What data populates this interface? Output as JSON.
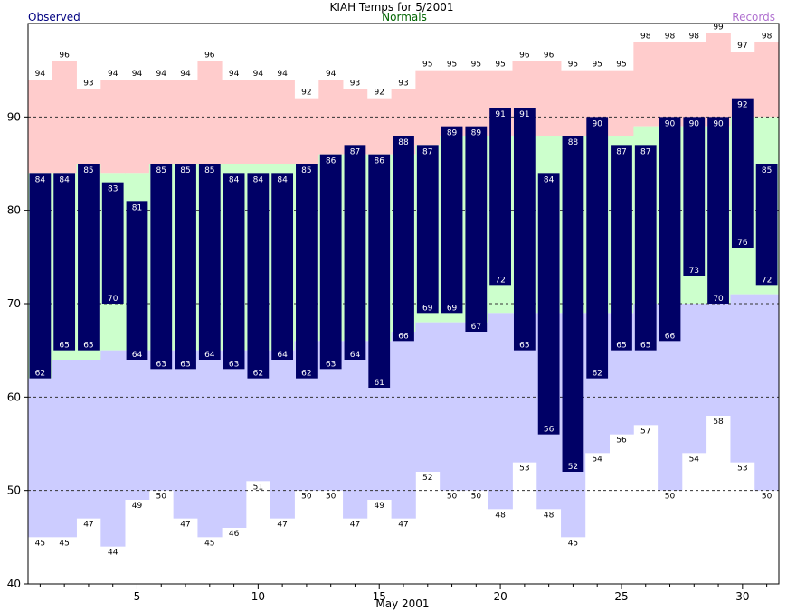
{
  "chart_data": {
    "type": "bar",
    "title": "KIAH Temps for 5/2001",
    "xlabel": "May 2001",
    "ylabel": "",
    "legend": {
      "placement": "top",
      "entries": [
        {
          "label": "Observed",
          "color": "#000080"
        },
        {
          "label": "Normals",
          "color": "#006400"
        },
        {
          "label": "Records",
          "color": "#b070d0"
        }
      ]
    },
    "ylim": [
      40,
      100
    ],
    "yticks": [
      40,
      50,
      60,
      70,
      80,
      90
    ],
    "xticks": [
      5,
      10,
      15,
      20,
      25,
      30
    ],
    "grid": "dashed horizontal at 50, 60, 70, 80, 90",
    "colors": {
      "observed": "#000066",
      "normals": "#ccffcc",
      "record_high_band": "#ffcccc",
      "record_low_band": "#ccccff",
      "observed_text": "#ffffff"
    },
    "days": [
      1,
      2,
      3,
      4,
      5,
      6,
      7,
      8,
      9,
      10,
      11,
      12,
      13,
      14,
      15,
      16,
      17,
      18,
      19,
      20,
      21,
      22,
      23,
      24,
      25,
      26,
      27,
      28,
      29,
      30,
      31
    ],
    "record_high": [
      94,
      96,
      93,
      94,
      94,
      94,
      94,
      96,
      94,
      94,
      94,
      92,
      94,
      93,
      92,
      93,
      95,
      95,
      95,
      95,
      96,
      96,
      95,
      95,
      95,
      98,
      98,
      98,
      99,
      97,
      98
    ],
    "record_low": [
      45,
      45,
      47,
      44,
      49,
      50,
      47,
      45,
      46,
      51,
      47,
      50,
      50,
      47,
      49,
      47,
      52,
      50,
      50,
      48,
      53,
      48,
      45,
      54,
      56,
      57,
      50,
      54,
      58,
      53,
      50
    ],
    "normal_high": [
      84,
      84,
      85,
      84,
      84,
      85,
      85,
      85,
      85,
      85,
      85,
      85,
      86,
      86,
      86,
      86,
      87,
      88,
      88,
      88,
      88,
      88,
      88,
      88,
      88,
      89,
      89,
      89,
      89,
      90,
      90
    ],
    "normal_low": [
      62,
      64,
      64,
      65,
      65,
      65,
      65,
      65,
      65,
      65,
      65,
      66,
      66,
      66,
      66,
      67,
      68,
      68,
      68,
      69,
      69,
      69,
      69,
      69,
      69,
      70,
      70,
      70,
      70,
      71,
      71
    ],
    "observed_high": [
      84,
      84,
      85,
      83,
      81,
      85,
      85,
      85,
      84,
      84,
      84,
      85,
      86,
      87,
      86,
      88,
      87,
      89,
      89,
      91,
      91,
      84,
      88,
      90,
      87,
      87,
      90,
      90,
      90,
      92,
      85
    ],
    "observed_low": [
      62,
      65,
      65,
      70,
      64,
      63,
      63,
      64,
      63,
      62,
      64,
      62,
      63,
      64,
      61,
      66,
      69,
      69,
      67,
      72,
      65,
      56,
      52,
      62,
      65,
      65,
      66,
      73,
      70,
      76,
      72
    ]
  }
}
